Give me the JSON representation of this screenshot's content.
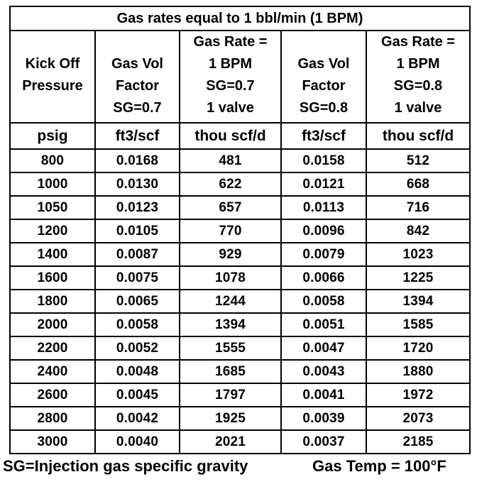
{
  "page": {
    "background": "#ffffff",
    "border_color": "#000000",
    "text_color": "#000000"
  },
  "table": {
    "title": "Gas rates equal to 1 bbl/min (1 BPM)",
    "headers": [
      "Kick Off\nPressure",
      "Gas Vol\nFactor\nSG=0.7",
      "Gas Rate =\n1 BPM\nSG=0.7\n1 valve",
      "Gas Vol\nFactor\nSG=0.8",
      "Gas Rate =\n1 BPM\nSG=0.8\n1 valve"
    ],
    "units": [
      "psig",
      "ft3/scf",
      "thou scf/d",
      "ft3/scf",
      "thou scf/d"
    ]
  },
  "footer": {
    "left": "SG=Injection gas specific gravity",
    "right": "Gas Temp = 100°F"
  },
  "chart_data": {
    "type": "table",
    "title": "Gas rates equal to 1 bbl/min (1 BPM)",
    "x_column": "Kick Off Pressure (psig)",
    "pressures_psig": [
      800,
      1000,
      1050,
      1200,
      1400,
      1600,
      1800,
      2000,
      2200,
      2400,
      2600,
      2800,
      3000
    ],
    "series": [
      {
        "name": "Gas Vol Factor SG=0.7 (ft3/scf)",
        "values": [
          "0.0168",
          "0.0130",
          "0.0123",
          "0.0105",
          "0.0087",
          "0.0075",
          "0.0065",
          "0.0058",
          "0.0052",
          "0.0048",
          "0.0045",
          "0.0042",
          "0.0040"
        ]
      },
      {
        "name": "Gas Rate = 1 BPM SG=0.7 1 valve (thou scf/d)",
        "values": [
          481,
          622,
          657,
          770,
          929,
          1078,
          1244,
          1394,
          1555,
          1685,
          1797,
          1925,
          2021
        ]
      },
      {
        "name": "Gas Vol Factor SG=0.8 (ft3/scf)",
        "values": [
          "0.0158",
          "0.0121",
          "0.0113",
          "0.0096",
          "0.0079",
          "0.0066",
          "0.0058",
          "0.0051",
          "0.0047",
          "0.0043",
          "0.0041",
          "0.0039",
          "0.0037"
        ]
      },
      {
        "name": "Gas Rate = 1 BPM SG=0.8 1 valve (thou scf/d)",
        "values": [
          512,
          668,
          716,
          842,
          1023,
          1225,
          1394,
          1585,
          1720,
          1880,
          1972,
          2073,
          2185
        ]
      }
    ],
    "notes": [
      "SG=Injection gas specific gravity",
      "Gas Temp = 100°F"
    ]
  }
}
